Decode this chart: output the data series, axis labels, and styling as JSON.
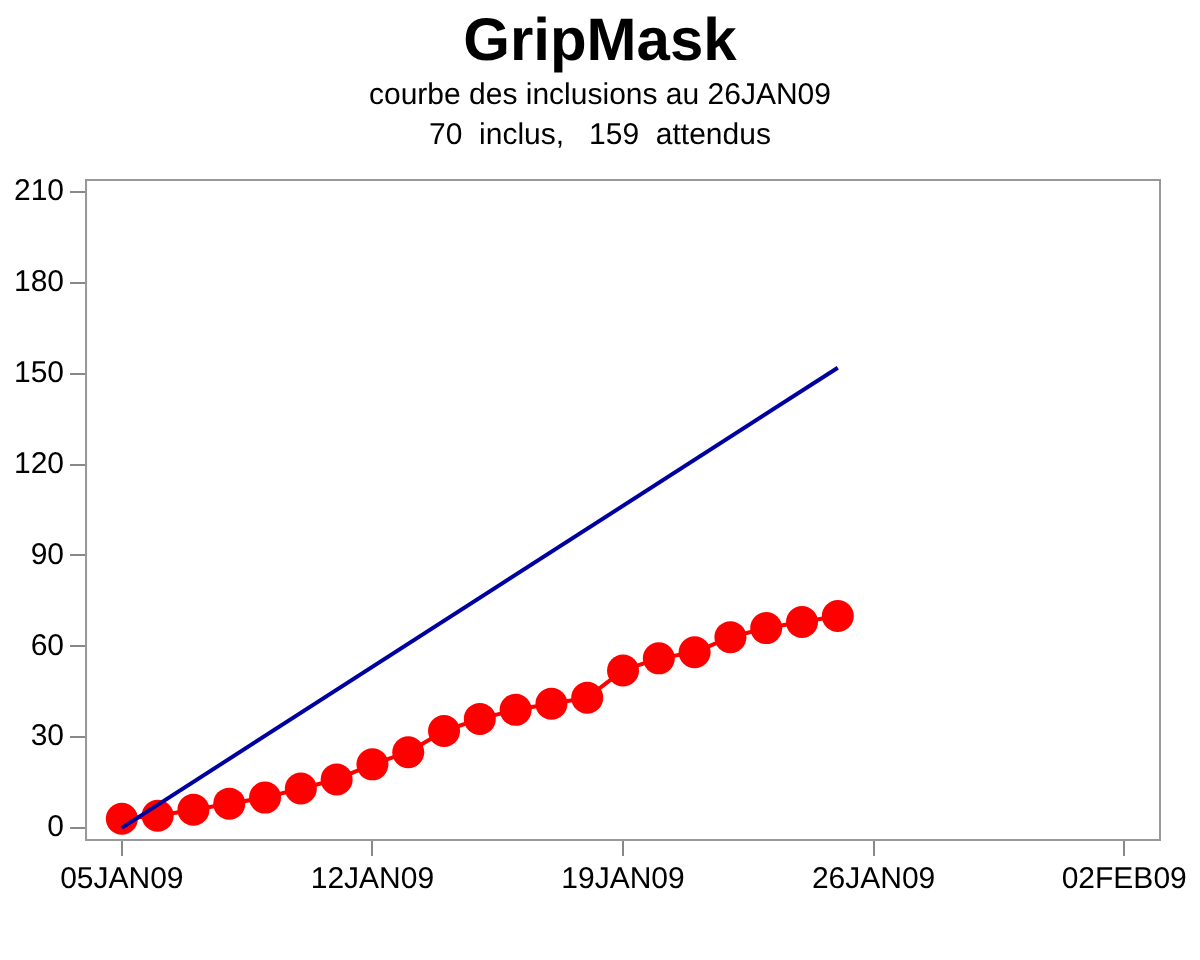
{
  "chart_data": {
    "type": "line",
    "title": "GripMask",
    "subtitle": "courbe des inclusions au 26JAN09\n70  inclus,   159  attendus",
    "xlim": [
      "--01-04",
      "--02-03"
    ],
    "xticks": [
      {
        "value": "--01-05",
        "label": "05JAN09"
      },
      {
        "value": "--01-12",
        "label": "12JAN09"
      },
      {
        "value": "--01-19",
        "label": "19JAN09"
      },
      {
        "value": "--01-26",
        "label": "26JAN09"
      },
      {
        "value": "--02-02",
        "label": "02FEB09"
      }
    ],
    "ylim": [
      -4,
      214
    ],
    "yticks": [
      0,
      30,
      60,
      90,
      120,
      150,
      180,
      210
    ],
    "grid": false,
    "legend": false,
    "series": [
      {
        "color": "#0000a0",
        "marker": "none",
        "x": [
          "--01-05",
          "--01-25"
        ],
        "values": [
          0,
          152
        ]
      },
      {
        "color": "#ff0000",
        "marker": "circle",
        "x": [
          "--01-05",
          "--01-06",
          "--01-07",
          "--01-08",
          "--01-09",
          "--01-10",
          "--01-11",
          "--01-12",
          "--01-13",
          "--01-14",
          "--01-15",
          "--01-16",
          "--01-17",
          "--01-18",
          "--01-19",
          "--01-20",
          "--01-21",
          "--01-22",
          "--01-23",
          "--01-24",
          "--01-25"
        ],
        "values": [
          3,
          4,
          6,
          8,
          10,
          13,
          16,
          21,
          25,
          32,
          36,
          39,
          41,
          43,
          52,
          56,
          58,
          63,
          66,
          68,
          70
        ]
      }
    ]
  }
}
